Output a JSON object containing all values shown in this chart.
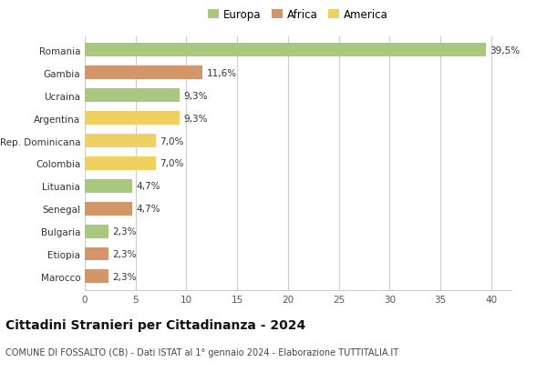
{
  "categories": [
    "Romania",
    "Gambia",
    "Ucraina",
    "Argentina",
    "Rep. Dominicana",
    "Colombia",
    "Lituania",
    "Senegal",
    "Bulgaria",
    "Etiopia",
    "Marocco"
  ],
  "values": [
    39.5,
    11.6,
    9.3,
    9.3,
    7.0,
    7.0,
    4.7,
    4.7,
    2.3,
    2.3,
    2.3
  ],
  "labels": [
    "39,5%",
    "11,6%",
    "9,3%",
    "9,3%",
    "7,0%",
    "7,0%",
    "4,7%",
    "4,7%",
    "2,3%",
    "2,3%",
    "2,3%"
  ],
  "continents": [
    "Europa",
    "Africa",
    "Europa",
    "America",
    "America",
    "America",
    "Europa",
    "Africa",
    "Europa",
    "Africa",
    "Africa"
  ],
  "colors": {
    "Europa": "#a8c880",
    "Africa": "#d4956a",
    "America": "#f0d060"
  },
  "legend_order": [
    "Europa",
    "Africa",
    "America"
  ],
  "xlim": [
    0,
    42
  ],
  "xticks": [
    0,
    5,
    10,
    15,
    20,
    25,
    30,
    35,
    40
  ],
  "title": "Cittadini Stranieri per Cittadinanza - 2024",
  "subtitle": "COMUNE DI FOSSALTO (CB) - Dati ISTAT al 1° gennaio 2024 - Elaborazione TUTTITALIA.IT",
  "bg_color": "#ffffff",
  "grid_color": "#cccccc",
  "bar_height": 0.6,
  "label_fontsize": 7.5,
  "title_fontsize": 10,
  "subtitle_fontsize": 7,
  "tick_fontsize": 7.5,
  "legend_fontsize": 8.5
}
